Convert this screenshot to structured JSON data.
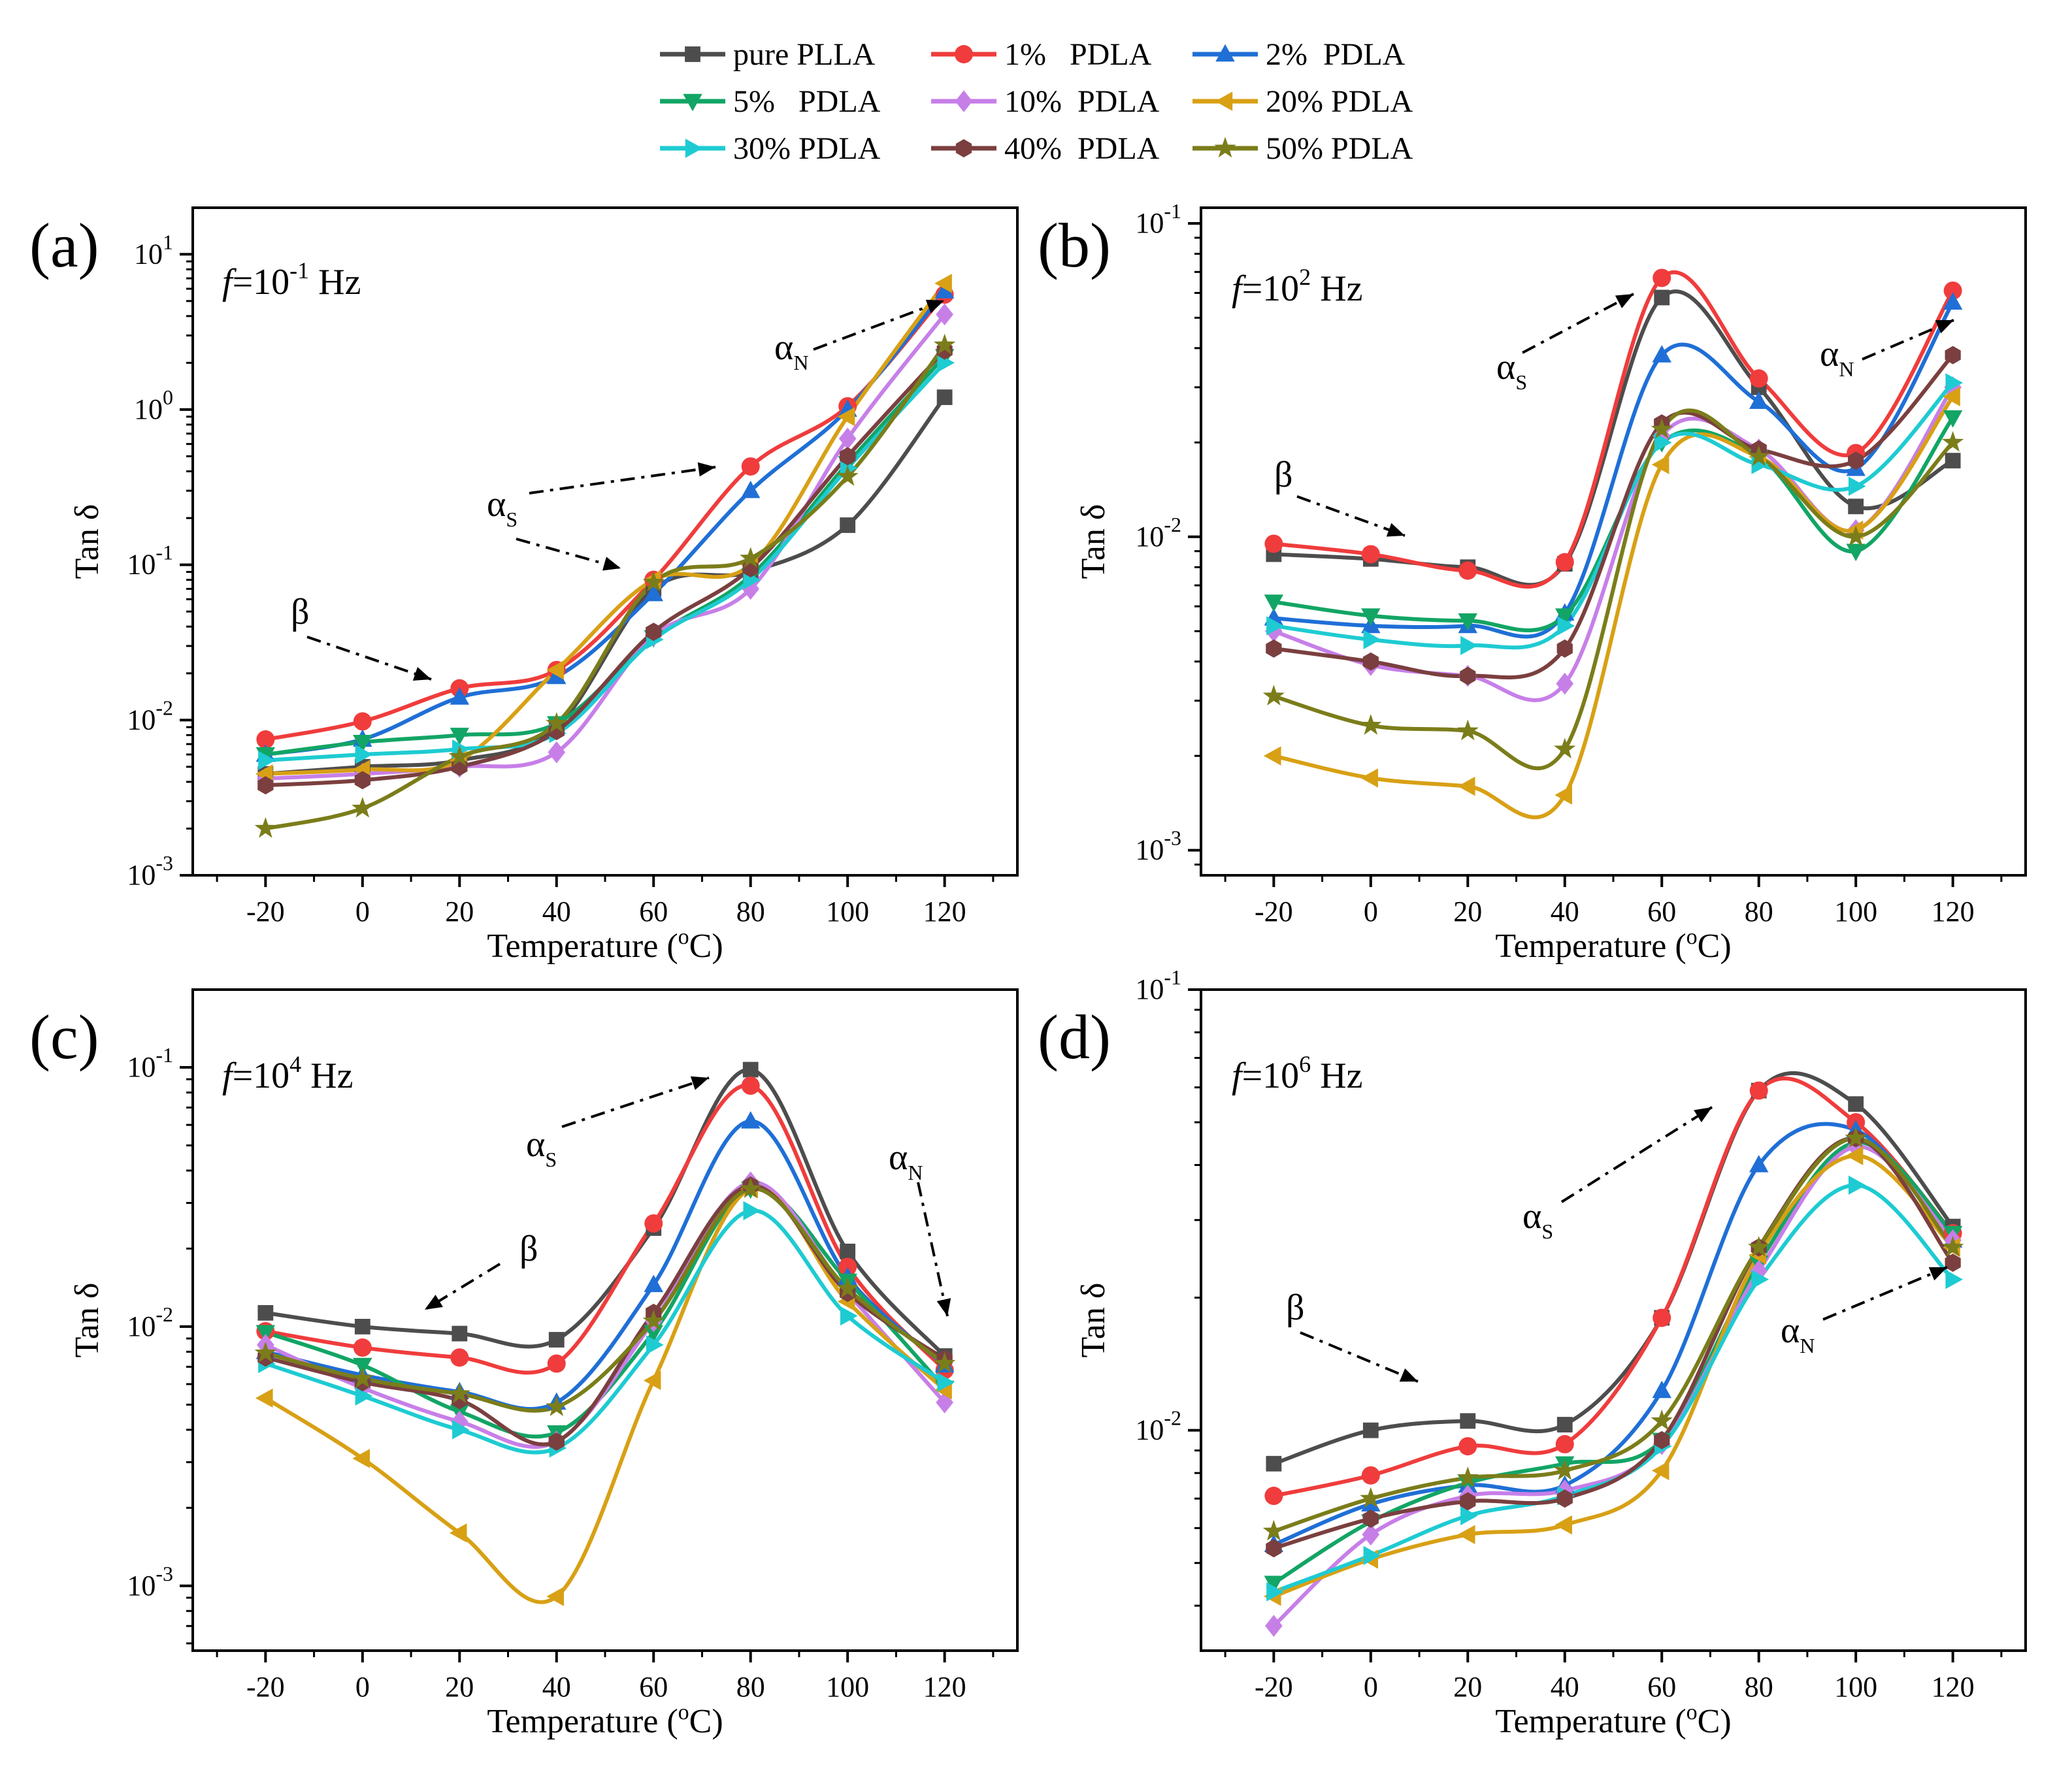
{
  "legend": {
    "entries": [
      {
        "name": "pure PLLA",
        "color": "#4d4d4d",
        "marker": "square"
      },
      {
        "name": "1%   PDLA",
        "color": "#f03c3c",
        "marker": "circle"
      },
      {
        "name": "2%  PDLA",
        "color": "#1f6fd6",
        "marker": "triangle-up"
      },
      {
        "name": "5%   PDLA",
        "color": "#12a565",
        "marker": "triangle-down"
      },
      {
        "name": "10%  PDLA",
        "color": "#c77fe8",
        "marker": "diamond"
      },
      {
        "name": "20% PDLA",
        "color": "#d8a015",
        "marker": "triangle-left"
      },
      {
        "name": "30% PDLA",
        "color": "#1ecbd2",
        "marker": "triangle-right"
      },
      {
        "name": "40%  PDLA",
        "color": "#7b3f3f",
        "marker": "hexagon"
      },
      {
        "name": "50% PDLA",
        "color": "#7b7d1a",
        "marker": "star"
      }
    ]
  },
  "chart_data": [
    {
      "type": "line",
      "panel_label": "(a)",
      "freq_prefix": "f",
      "freq_text": "=10",
      "freq_exp": "-1",
      "freq_unit": " Hz",
      "xlabel": "Temperature (",
      "xlabel_sup": "o",
      "xlabel_end": "C)",
      "ylabel": "Tan δ",
      "x": [
        -20,
        0,
        20,
        40,
        60,
        80,
        100,
        120
      ],
      "xlim": [
        -35,
        135
      ],
      "ylim_log10": [
        -3,
        1.3
      ],
      "yticks_exp": [
        -3,
        -2,
        -1,
        0,
        1
      ],
      "ytick_labels": [
        {
          "base": "10",
          "exp": "-3"
        },
        {
          "base": "10",
          "exp": "-2"
        },
        {
          "base": "10",
          "exp": "-1"
        },
        {
          "base": "10",
          "exp": "0"
        },
        {
          "base": "10",
          "exp": "1"
        }
      ],
      "series": [
        {
          "name": "pure PLLA",
          "values": [
            0.0045,
            0.005,
            0.0055,
            0.009,
            0.07,
            0.09,
            0.18,
            1.2
          ]
        },
        {
          "name": "1%   PDLA",
          "values": [
            0.0075,
            0.0098,
            0.016,
            0.021,
            0.08,
            0.43,
            1.05,
            5.5
          ]
        },
        {
          "name": "2%  PDLA",
          "values": [
            0.006,
            0.0075,
            0.014,
            0.019,
            0.065,
            0.3,
            1.0,
            5.8
          ]
        },
        {
          "name": "5%   PDLA",
          "values": [
            0.006,
            0.0072,
            0.008,
            0.0095,
            0.034,
            0.085,
            0.45,
            2.2
          ]
        },
        {
          "name": "10%  PDLA",
          "values": [
            0.0042,
            0.0045,
            0.005,
            0.0062,
            0.035,
            0.07,
            0.65,
            4.1
          ]
        },
        {
          "name": "20% PDLA",
          "values": [
            0.0045,
            0.0048,
            0.0055,
            0.021,
            0.08,
            0.1,
            0.9,
            6.5
          ]
        },
        {
          "name": "30% PDLA",
          "values": [
            0.0055,
            0.006,
            0.0065,
            0.0082,
            0.033,
            0.08,
            0.42,
            2.0
          ]
        },
        {
          "name": "40%  PDLA",
          "values": [
            0.0038,
            0.0041,
            0.005,
            0.0085,
            0.037,
            0.095,
            0.5,
            2.4
          ]
        },
        {
          "name": "50% PDLA",
          "values": [
            0.002,
            0.0027,
            0.0058,
            0.0095,
            0.077,
            0.11,
            0.37,
            2.6
          ]
        }
      ],
      "annotations": {
        "beta": "β",
        "alpha_s": "α",
        "alpha_s_sub": "S",
        "alpha_n": "α",
        "alpha_n_sub": "N"
      }
    },
    {
      "type": "line",
      "panel_label": "(b)",
      "freq_prefix": "f",
      "freq_text": "=10",
      "freq_exp": "2",
      "freq_unit": " Hz",
      "xlabel": "Temperature (",
      "xlabel_sup": "o",
      "xlabel_end": "C)",
      "ylabel": "Tan δ",
      "x": [
        -20,
        0,
        20,
        40,
        60,
        80,
        100,
        120
      ],
      "xlim": [
        -35,
        135
      ],
      "ylim_log10": [
        -3.08,
        -0.95
      ],
      "yticks_exp": [
        -3,
        -2,
        -1
      ],
      "ytick_labels": [
        {
          "base": "10",
          "exp": "-3"
        },
        {
          "base": "10",
          "exp": "-2"
        },
        {
          "base": "10",
          "exp": "-1"
        }
      ],
      "series": [
        {
          "name": "pure PLLA",
          "values": [
            0.0088,
            0.0085,
            0.008,
            0.0082,
            0.058,
            0.03,
            0.0125,
            0.0175
          ]
        },
        {
          "name": "1%   PDLA",
          "values": [
            0.0095,
            0.0088,
            0.0078,
            0.0083,
            0.067,
            0.032,
            0.0185,
            0.061
          ]
        },
        {
          "name": "2%  PDLA",
          "values": [
            0.0055,
            0.0052,
            0.0052,
            0.0057,
            0.038,
            0.027,
            0.0165,
            0.056
          ]
        },
        {
          "name": "5%   PDLA",
          "values": [
            0.0062,
            0.0056,
            0.0054,
            0.0056,
            0.02,
            0.018,
            0.009,
            0.024
          ]
        },
        {
          "name": "10%  PDLA",
          "values": [
            0.005,
            0.0039,
            0.0036,
            0.0034,
            0.021,
            0.019,
            0.0105,
            0.03
          ]
        },
        {
          "name": "20% PDLA",
          "values": [
            0.002,
            0.0017,
            0.0016,
            0.0015,
            0.017,
            0.018,
            0.0105,
            0.028
          ]
        },
        {
          "name": "30% PDLA",
          "values": [
            0.0052,
            0.0047,
            0.0045,
            0.0052,
            0.02,
            0.017,
            0.0145,
            0.031
          ]
        },
        {
          "name": "40%  PDLA",
          "values": [
            0.0044,
            0.004,
            0.0036,
            0.0044,
            0.023,
            0.019,
            0.0175,
            0.038
          ]
        },
        {
          "name": "50% PDLA",
          "values": [
            0.0031,
            0.0025,
            0.0024,
            0.0021,
            0.022,
            0.018,
            0.01,
            0.02
          ]
        }
      ],
      "annotations": {
        "beta": "β",
        "alpha_s": "α",
        "alpha_s_sub": "S",
        "alpha_n": "α",
        "alpha_n_sub": "N"
      }
    },
    {
      "type": "line",
      "panel_label": "(c)",
      "freq_prefix": "f",
      "freq_text": "=10",
      "freq_exp": "4",
      "freq_unit": " Hz",
      "xlabel": "Temperature (",
      "xlabel_sup": "o",
      "xlabel_end": "C)",
      "ylabel": "Tan δ",
      "x": [
        -20,
        0,
        20,
        40,
        60,
        80,
        100,
        120
      ],
      "xlim": [
        -35,
        135
      ],
      "ylim_log10": [
        -3.25,
        -0.7
      ],
      "yticks_exp": [
        -3,
        -2,
        -1
      ],
      "ytick_labels": [
        {
          "base": "10",
          "exp": "-3"
        },
        {
          "base": "10",
          "exp": "-2"
        },
        {
          "base": "10",
          "exp": "-1"
        }
      ],
      "series": [
        {
          "name": "pure PLLA",
          "values": [
            0.0113,
            0.01,
            0.0094,
            0.0089,
            0.024,
            0.098,
            0.0195,
            0.0077
          ]
        },
        {
          "name": "1%   PDLA",
          "values": [
            0.0096,
            0.0083,
            0.0076,
            0.0072,
            0.025,
            0.085,
            0.017,
            0.0068
          ]
        },
        {
          "name": "2%  PDLA",
          "values": [
            0.008,
            0.0065,
            0.0056,
            0.0051,
            0.0145,
            0.062,
            0.0155,
            0.0071
          ]
        },
        {
          "name": "5%   PDLA",
          "values": [
            0.0095,
            0.0071,
            0.0047,
            0.0039,
            0.0095,
            0.034,
            0.015,
            0.0058
          ]
        },
        {
          "name": "10%  PDLA",
          "values": [
            0.0085,
            0.0058,
            0.0043,
            0.0036,
            0.0105,
            0.036,
            0.0135,
            0.0051
          ]
        },
        {
          "name": "20% PDLA",
          "values": [
            0.0053,
            0.0031,
            0.0016,
            0.00091,
            0.0062,
            0.034,
            0.0125,
            0.0057
          ]
        },
        {
          "name": "30% PDLA",
          "values": [
            0.0072,
            0.0054,
            0.004,
            0.0034,
            0.0085,
            0.028,
            0.011,
            0.0061
          ]
        },
        {
          "name": "40%  PDLA",
          "values": [
            0.0076,
            0.0061,
            0.0052,
            0.0036,
            0.0113,
            0.035,
            0.0135,
            0.0075
          ]
        },
        {
          "name": "50% PDLA",
          "values": [
            0.0079,
            0.0063,
            0.0055,
            0.0049,
            0.0105,
            0.034,
            0.014,
            0.0072
          ]
        }
      ],
      "annotations": {
        "beta": "β",
        "alpha_s": "α",
        "alpha_s_sub": "S",
        "alpha_n": "α",
        "alpha_n_sub": "N"
      }
    },
    {
      "type": "line",
      "panel_label": "(d)",
      "freq_prefix": "f",
      "freq_text": "=10",
      "freq_exp": "6",
      "freq_unit": " Hz",
      "xlabel": "Temperature (",
      "xlabel_sup": "o",
      "xlabel_end": "C)",
      "ylabel": "Tan δ",
      "x": [
        -20,
        0,
        20,
        40,
        60,
        80,
        100,
        120
      ],
      "xlim": [
        -35,
        135
      ],
      "ylim_log10": [
        -2.5,
        -1.0
      ],
      "yticks_exp": [
        -2,
        -1
      ],
      "ytick_labels": [
        {
          "base": "10",
          "exp": "-2"
        },
        {
          "base": "10",
          "exp": "-1"
        }
      ],
      "series": [
        {
          "name": "pure PLLA",
          "values": [
            0.0084,
            0.01,
            0.0105,
            0.0103,
            0.018,
            0.059,
            0.055,
            0.029
          ]
        },
        {
          "name": "1%   PDLA",
          "values": [
            0.0071,
            0.0079,
            0.0092,
            0.0093,
            0.018,
            0.059,
            0.05,
            0.028
          ]
        },
        {
          "name": "2%  PDLA",
          "values": [
            0.0055,
            0.0068,
            0.0075,
            0.0075,
            0.0123,
            0.04,
            0.048,
            0.027
          ]
        },
        {
          "name": "5%   PDLA",
          "values": [
            0.0045,
            0.0062,
            0.0076,
            0.0084,
            0.0095,
            0.024,
            0.045,
            0.028
          ]
        },
        {
          "name": "10%  PDLA",
          "values": [
            0.0036,
            0.0058,
            0.0071,
            0.0073,
            0.0093,
            0.023,
            0.044,
            0.027
          ]
        },
        {
          "name": "20% PDLA",
          "values": [
            0.0042,
            0.0051,
            0.0058,
            0.0061,
            0.0081,
            0.025,
            0.042,
            0.026
          ]
        },
        {
          "name": "30% PDLA",
          "values": [
            0.0043,
            0.0052,
            0.0064,
            0.0071,
            0.0092,
            0.022,
            0.036,
            0.022
          ]
        },
        {
          "name": "40%  PDLA",
          "values": [
            0.0054,
            0.0063,
            0.0069,
            0.007,
            0.0095,
            0.026,
            0.046,
            0.024
          ]
        },
        {
          "name": "50% PDLA",
          "values": [
            0.0059,
            0.007,
            0.0078,
            0.0081,
            0.0105,
            0.026,
            0.046,
            0.026
          ]
        }
      ],
      "annotations": {
        "beta": "β",
        "alpha_s": "α",
        "alpha_s_sub": "S",
        "alpha_n": "α",
        "alpha_n_sub": "N"
      }
    }
  ]
}
